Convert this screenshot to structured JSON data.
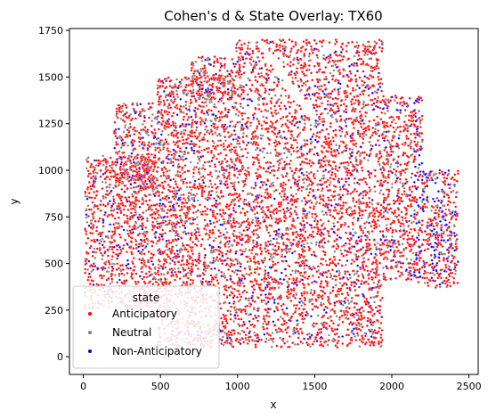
{
  "chart_data": {
    "type": "scatter",
    "title": "Cohen's d & State Overlay: TX60",
    "xlabel": "x",
    "ylabel": "y",
    "xlim": [
      -90,
      2560
    ],
    "ylim": [
      -95,
      1760
    ],
    "xticks": [
      0,
      500,
      1000,
      1500,
      2000,
      2500
    ],
    "yticks": [
      0,
      250,
      500,
      750,
      1000,
      1250,
      1500,
      1750
    ],
    "grid": false,
    "legend": {
      "title": "state",
      "placement": "lower-left",
      "entries": [
        {
          "name": "Anticipatory",
          "color": "#ff0000"
        },
        {
          "name": "Neutral",
          "color": "#808080"
        },
        {
          "name": "Non-Anticipatory",
          "color": "#0000ff"
        }
      ]
    },
    "series": [
      {
        "name": "Anticipatory",
        "color": "#ff0000",
        "share": 0.7
      },
      {
        "name": "Neutral",
        "color": "#808080",
        "share": 0.2
      },
      {
        "name": "Non-Anticipatory",
        "color": "#0000ff",
        "share": 0.1
      }
    ],
    "tissue_regions": [
      {
        "x": [
          10,
          480
        ],
        "y": [
          260,
          1080
        ]
      },
      {
        "x": [
          200,
          480
        ],
        "y": [
          900,
          1360
        ]
      },
      {
        "x": [
          480,
          990
        ],
        "y": [
          50,
          1510
        ]
      },
      {
        "x": [
          700,
          990
        ],
        "y": [
          1380,
          1610
        ]
      },
      {
        "x": [
          990,
          1940
        ],
        "y": [
          50,
          1700
        ]
      },
      {
        "x": [
          1940,
          2200
        ],
        "y": [
          400,
          1400
        ]
      },
      {
        "x": [
          2200,
          2430
        ],
        "y": [
          370,
          1000
        ]
      }
    ]
  }
}
